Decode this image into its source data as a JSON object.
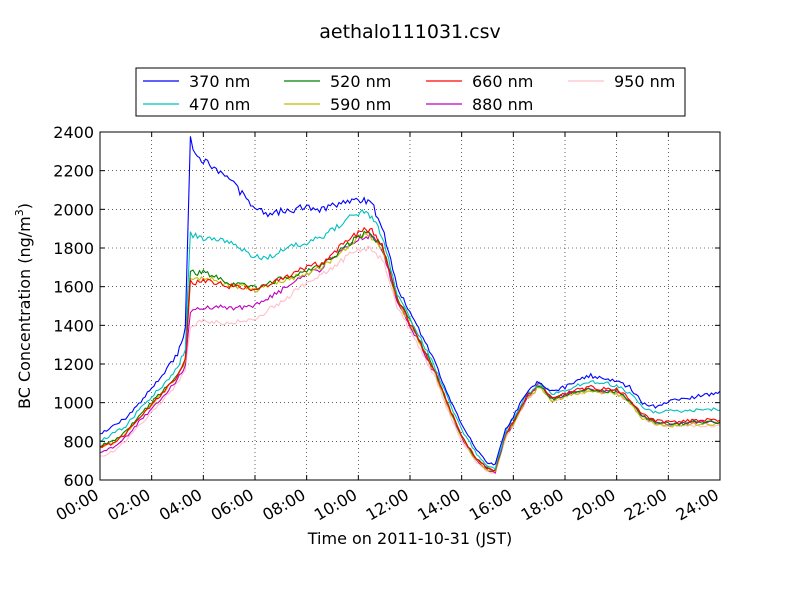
{
  "chart_data": {
    "type": "line",
    "title": "aethalo111031.csv",
    "xlabel": "Time on 2011-10-31 (JST)",
    "ylabel": "BC Concentration (ng/m",
    "ylabel_sup": "3",
    "ylabel_end": ")",
    "xlim": [
      0,
      24
    ],
    "ylim": [
      600,
      2400
    ],
    "grid": true,
    "legend_position": "top",
    "x_ticks": [
      0,
      2,
      4,
      6,
      8,
      10,
      12,
      14,
      16,
      18,
      20,
      22,
      24
    ],
    "x_tick_labels": [
      "00:00",
      "02:00",
      "04:00",
      "06:00",
      "08:00",
      "10:00",
      "12:00",
      "14:00",
      "16:00",
      "18:00",
      "20:00",
      "22:00",
      "24:00"
    ],
    "y_ticks": [
      600,
      800,
      1000,
      1200,
      1400,
      1600,
      1800,
      2000,
      2200,
      2400
    ],
    "y_tick_labels": [
      "600",
      "800",
      "1000",
      "1200",
      "1400",
      "1600",
      "1800",
      "2000",
      "2200",
      "2400"
    ],
    "x": [
      0,
      0.5,
      1,
      1.5,
      2,
      2.5,
      3,
      3.3,
      3.5,
      3.7,
      4,
      4.5,
      5,
      5.5,
      6,
      6.5,
      7,
      7.5,
      8,
      8.5,
      9,
      9.5,
      10,
      10.3,
      10.6,
      11,
      11.5,
      12,
      12.5,
      13,
      13.5,
      14,
      14.5,
      15,
      15.3,
      15.7,
      16,
      16.5,
      17,
      17.5,
      18,
      18.5,
      19,
      19.5,
      20,
      20.5,
      21,
      21.5,
      22,
      22.5,
      23,
      23.5,
      24
    ],
    "series": [
      {
        "name": "370 nm",
        "color": "#0000ff",
        "values": [
          840,
          880,
          920,
          990,
          1080,
          1160,
          1250,
          1380,
          2360,
          2270,
          2250,
          2210,
          2160,
          2080,
          2010,
          1980,
          1990,
          2000,
          2010,
          2000,
          2020,
          2040,
          2050,
          2040,
          2010,
          1870,
          1600,
          1470,
          1340,
          1200,
          1030,
          890,
          770,
          690,
          680,
          860,
          930,
          1050,
          1110,
          1060,
          1080,
          1120,
          1140,
          1120,
          1110,
          1080,
          1000,
          980,
          1010,
          1020,
          1030,
          1040,
          1060
        ]
      },
      {
        "name": "470 nm",
        "color": "#00bfbf",
        "values": [
          800,
          840,
          880,
          960,
          1030,
          1100,
          1180,
          1280,
          1870,
          1860,
          1850,
          1840,
          1830,
          1790,
          1760,
          1750,
          1780,
          1810,
          1830,
          1850,
          1900,
          1940,
          1980,
          1990,
          1950,
          1830,
          1570,
          1440,
          1310,
          1170,
          1010,
          860,
          750,
          670,
          660,
          850,
          920,
          1040,
          1100,
          1050,
          1060,
          1090,
          1110,
          1100,
          1090,
          1050,
          980,
          950,
          960,
          950,
          960,
          970,
          960
        ]
      },
      {
        "name": "520 nm",
        "color": "#008000",
        "values": [
          780,
          800,
          850,
          930,
          1000,
          1070,
          1150,
          1220,
          1680,
          1670,
          1680,
          1650,
          1620,
          1610,
          1590,
          1620,
          1640,
          1660,
          1680,
          1700,
          1750,
          1810,
          1860,
          1880,
          1860,
          1780,
          1540,
          1420,
          1290,
          1150,
          980,
          830,
          720,
          660,
          650,
          840,
          900,
          1030,
          1090,
          1020,
          1040,
          1060,
          1070,
          1060,
          1060,
          1010,
          930,
          900,
          890,
          890,
          900,
          900,
          900
        ]
      },
      {
        "name": "590 nm",
        "color": "#bfbf00",
        "values": [
          770,
          790,
          840,
          920,
          990,
          1060,
          1140,
          1210,
          1650,
          1640,
          1650,
          1630,
          1610,
          1600,
          1580,
          1610,
          1630,
          1650,
          1670,
          1690,
          1740,
          1800,
          1850,
          1870,
          1850,
          1770,
          1530,
          1410,
          1280,
          1140,
          970,
          820,
          710,
          650,
          640,
          830,
          890,
          1020,
          1080,
          1010,
          1030,
          1050,
          1060,
          1050,
          1050,
          1000,
          920,
          890,
          880,
          880,
          890,
          890,
          890
        ]
      },
      {
        "name": "660 nm",
        "color": "#ff0000",
        "values": [
          770,
          790,
          840,
          920,
          990,
          1060,
          1140,
          1220,
          1630,
          1620,
          1630,
          1620,
          1600,
          1600,
          1590,
          1610,
          1640,
          1670,
          1700,
          1720,
          1770,
          1830,
          1880,
          1900,
          1880,
          1790,
          1540,
          1410,
          1280,
          1150,
          980,
          830,
          720,
          660,
          650,
          840,
          900,
          1030,
          1100,
          1030,
          1050,
          1070,
          1080,
          1070,
          1070,
          1020,
          940,
          910,
          900,
          900,
          910,
          910,
          910
        ]
      },
      {
        "name": "880 nm",
        "color": "#bf00bf",
        "values": [
          740,
          770,
          820,
          900,
          970,
          1040,
          1120,
          1190,
          1470,
          1480,
          1490,
          1500,
          1490,
          1490,
          1500,
          1540,
          1580,
          1620,
          1660,
          1690,
          1750,
          1800,
          1850,
          1870,
          1850,
          1760,
          1520,
          1400,
          1270,
          1140,
          970,
          820,
          710,
          650,
          640,
          830,
          890,
          1020,
          1090,
          1020,
          1040,
          1060,
          1070,
          1060,
          1060,
          1010,
          930,
          900,
          890,
          890,
          900,
          900,
          900
        ]
      },
      {
        "name": "950 nm",
        "color": "#ffc0cb",
        "values": [
          720,
          750,
          800,
          880,
          950,
          1020,
          1100,
          1160,
          1400,
          1410,
          1420,
          1420,
          1410,
          1420,
          1430,
          1480,
          1520,
          1570,
          1620,
          1650,
          1700,
          1750,
          1790,
          1800,
          1790,
          1720,
          1490,
          1380,
          1250,
          1120,
          950,
          800,
          700,
          640,
          630,
          820,
          880,
          1010,
          1080,
          1010,
          1030,
          1050,
          1060,
          1050,
          1050,
          1000,
          920,
          890,
          880,
          880,
          880,
          880,
          880
        ]
      }
    ]
  }
}
